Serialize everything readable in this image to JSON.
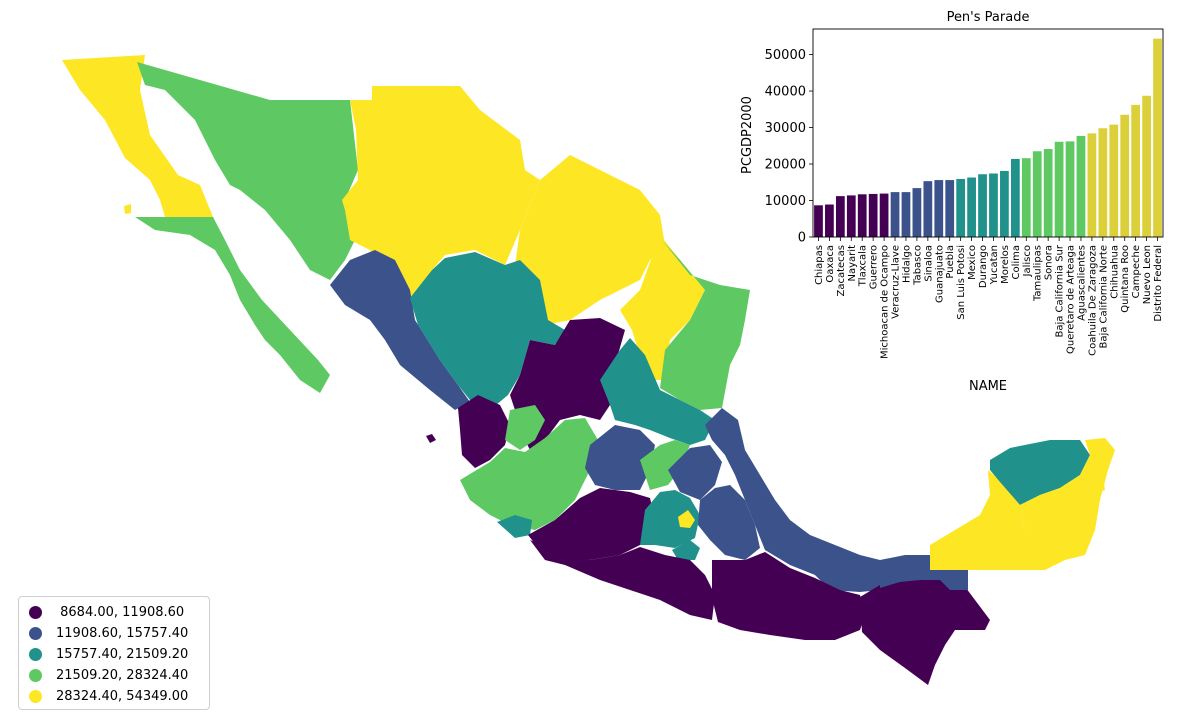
{
  "map_legend": {
    "items": [
      {
        "label": " 8684.00, 11908.60",
        "color": "#440154"
      },
      {
        "label": "11908.60, 15757.40",
        "color": "#3b528b"
      },
      {
        "label": "15757.40, 21509.20",
        "color": "#21918c"
      },
      {
        "label": "21509.20, 28324.40",
        "color": "#5ec962"
      },
      {
        "label": "28324.40, 54349.00",
        "color": "#fde725"
      }
    ]
  },
  "chart_data": {
    "type": "bar",
    "title": "Pen's Parade",
    "xlabel": "NAME",
    "ylabel": "PCGDP2000",
    "ylim": [
      0,
      57000
    ],
    "yticks": [
      0,
      10000,
      20000,
      30000,
      40000,
      50000
    ],
    "categories": [
      "Chiapas",
      "Oaxaca",
      "Zacatecas",
      "Nayarit",
      "Tlaxcala",
      "Guerrero",
      "Michoacan de Ocampo",
      "Veracruz-Llave",
      "Hidalgo",
      "Tabasco",
      "Sinaloa",
      "Guanajuato",
      "Puebla",
      "San Luis Potosi",
      "Mexico",
      "Durango",
      "Yucatan",
      "Morelos",
      "Colima",
      "Jalisco",
      "Tamaulipas",
      "Sonora",
      "Baja California Sur",
      "Queretaro de Arteaga",
      "Aguascalientes",
      "Coahuila De Zaragoza",
      "Baja California Norte",
      "Chihuahua",
      "Quintana Roo",
      "Campeche",
      "Nuevo Leon",
      "Distrito Federal"
    ],
    "values": [
      8684,
      8900,
      11200,
      11400,
      11700,
      11800,
      11900,
      12300,
      12300,
      13400,
      15300,
      15600,
      15600,
      15900,
      16300,
      17200,
      17400,
      18100,
      21400,
      21600,
      23500,
      24100,
      26100,
      26200,
      27700,
      28400,
      29800,
      30800,
      33500,
      36200,
      38700,
      54349
    ],
    "bar_colors": [
      "#440154",
      "#440154",
      "#440154",
      "#440154",
      "#440154",
      "#440154",
      "#440154",
      "#3b528b",
      "#3b528b",
      "#3b528b",
      "#3b528b",
      "#3b528b",
      "#3b528b",
      "#21918c",
      "#21918c",
      "#21918c",
      "#21918c",
      "#21918c",
      "#21918c",
      "#5ec962",
      "#5ec962",
      "#5ec962",
      "#5ec962",
      "#5ec962",
      "#5ec962",
      "#dcd03a",
      "#dcd03a",
      "#dcd03a",
      "#dcd03a",
      "#dcd03a",
      "#dcd03a",
      "#dcd03a"
    ],
    "grid": false
  }
}
